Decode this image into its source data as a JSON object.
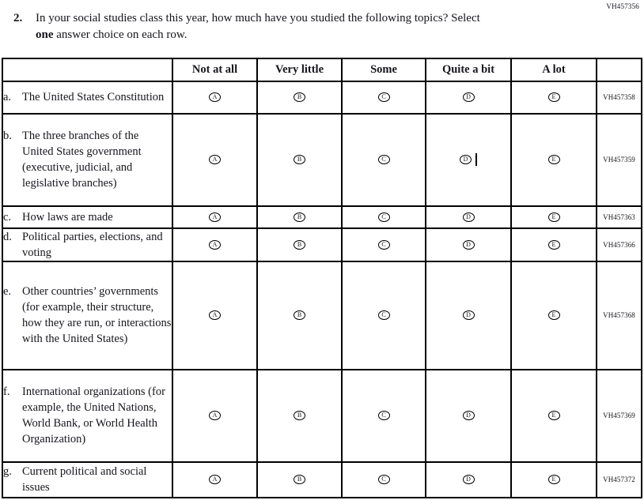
{
  "page_code": "VH457356",
  "question": {
    "number": "2.",
    "text_before": "In your social studies class this year, how much have you studied the following topics? Select ",
    "bold_word": "one",
    "text_after": " answer choice on each row."
  },
  "table": {
    "columns": [
      "Not at all",
      "Very little",
      "Some",
      "Quite a bit",
      "A lot"
    ],
    "options": [
      "A",
      "B",
      "C",
      "D",
      "E"
    ],
    "rows": [
      {
        "letter": "a.",
        "topic": "The United States Constitution",
        "code": "VH457358"
      },
      {
        "letter": "b.",
        "topic": "The three branches of the United States government (executive, judicial, and legislative branches)",
        "code": "VH457359",
        "caret_after_option": "D"
      },
      {
        "letter": "c.",
        "topic": "How laws are made",
        "code": "VH457363"
      },
      {
        "letter": "d.",
        "topic": "Political parties, elections, and voting",
        "code": "VH457366"
      },
      {
        "letter": "e.",
        "topic": "Other countries’ governments (for example, their structure, how they are run, or interactions with the United States)",
        "code": "VH457368"
      },
      {
        "letter": "f.",
        "topic": "International organizations (for example, the United Nations, World Bank, or World Health Organization)",
        "code": "VH457369"
      },
      {
        "letter": "g.",
        "topic": "Current political and social issues",
        "code": "VH457372"
      }
    ]
  }
}
